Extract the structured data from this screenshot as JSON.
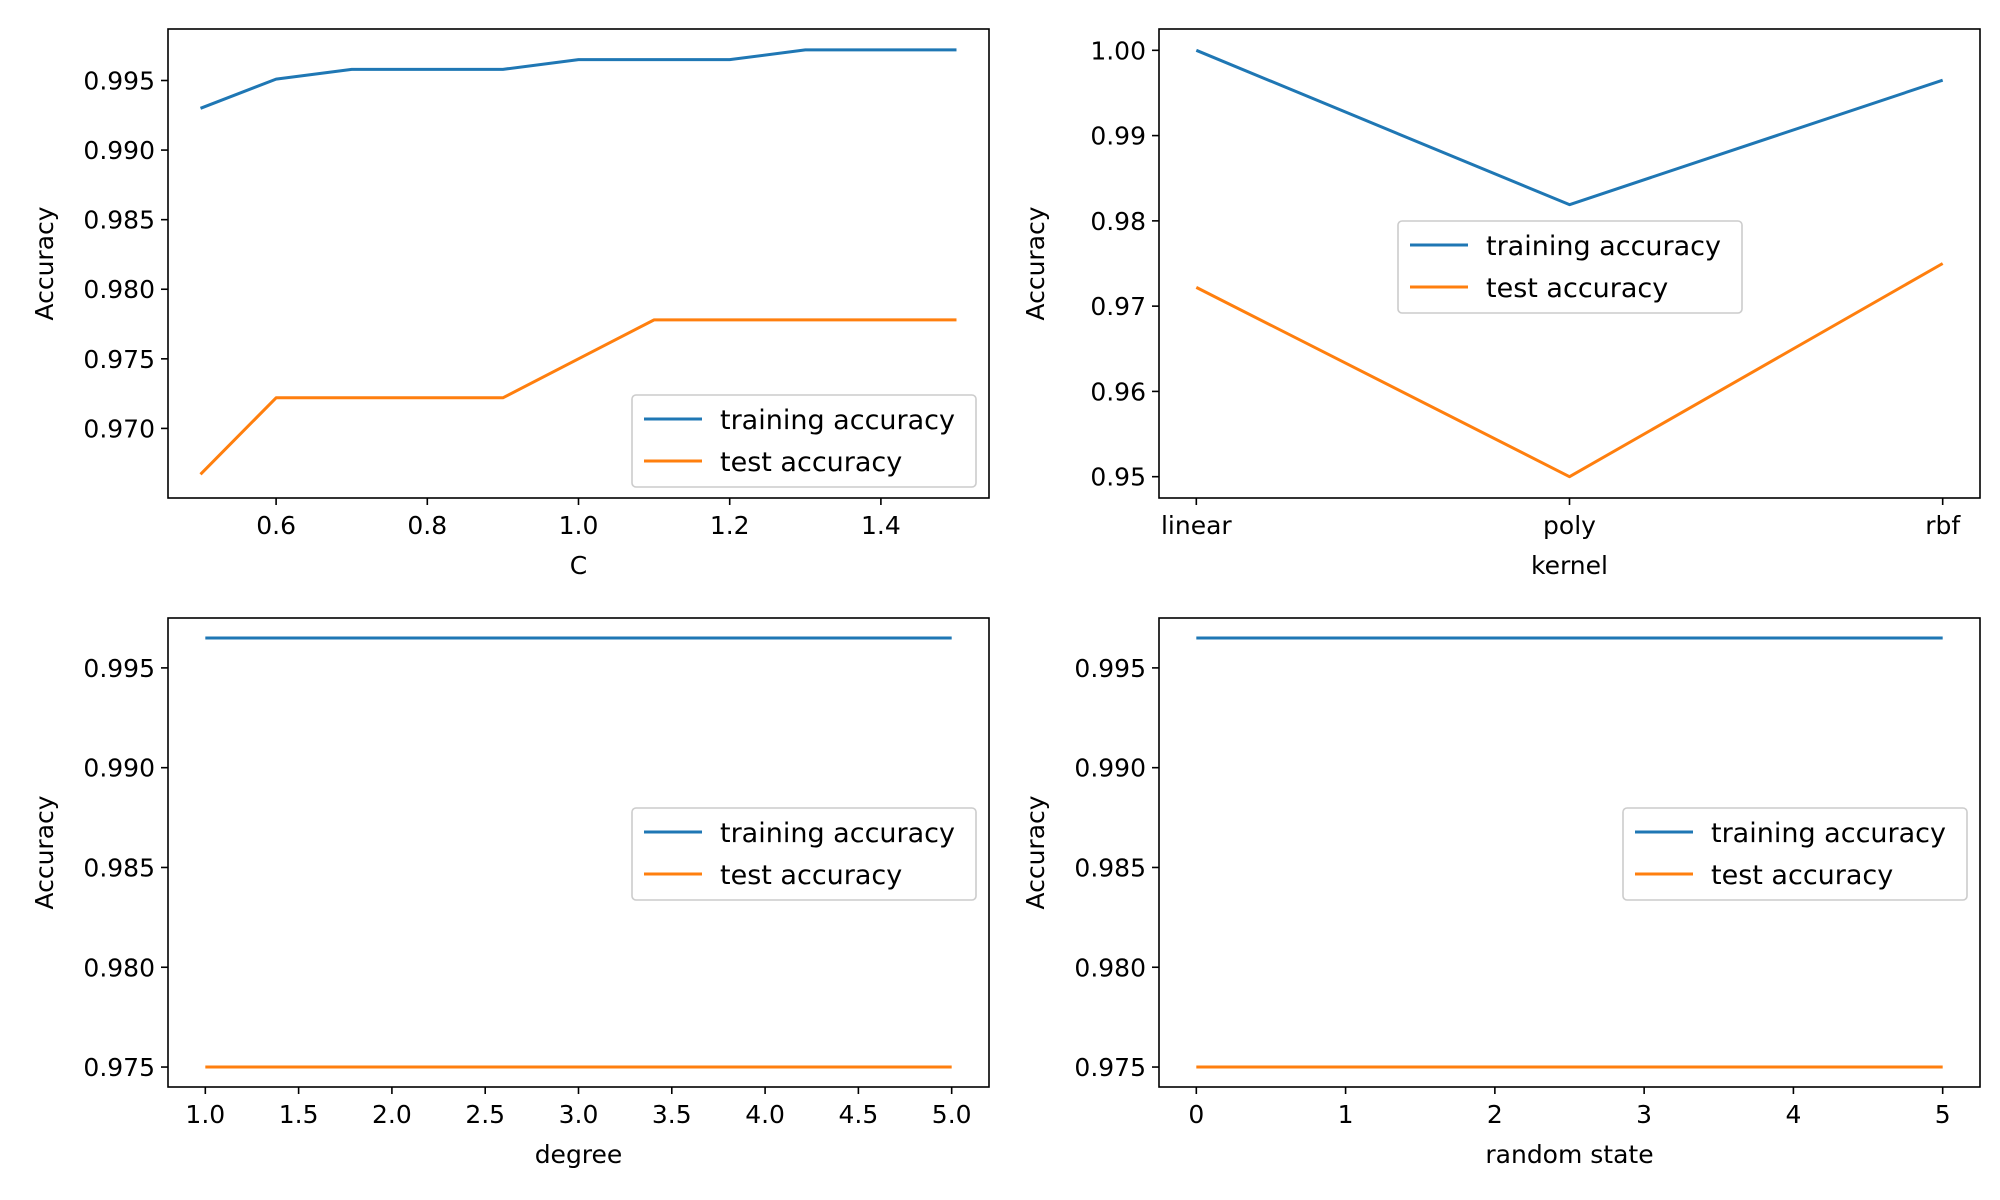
{
  "colors": {
    "training": "#1f77b4",
    "test": "#ff7f0e",
    "axes": "#000000",
    "legend_border": "#cccccc",
    "background": "#ffffff"
  },
  "chart_data": [
    {
      "type": "line",
      "xlabel": "C",
      "ylabel": "Accuracy",
      "x_scale": "numeric",
      "xlim": [
        0.457,
        1.543
      ],
      "ylim": [
        0.965,
        0.9987
      ],
      "xticks": [
        0.6,
        0.8,
        1.0,
        1.2,
        1.4
      ],
      "xtick_labels": [
        "0.6",
        "0.8",
        "1.0",
        "1.2",
        "1.4"
      ],
      "yticks": [
        0.97,
        0.975,
        0.98,
        0.985,
        0.99,
        0.995
      ],
      "ytick_labels": [
        "0.970",
        "0.975",
        "0.980",
        "0.985",
        "0.990",
        "0.995"
      ],
      "legend_loc": "lower right",
      "x": [
        0.5,
        0.6,
        0.7,
        0.8,
        0.9,
        1.0,
        1.1,
        1.2,
        1.3,
        1.4,
        1.5
      ],
      "series": [
        {
          "name": "training accuracy",
          "values": [
            0.993,
            0.9951,
            0.9958,
            0.9958,
            0.9958,
            0.9965,
            0.9965,
            0.9965,
            0.9972,
            0.9972,
            0.9972
          ]
        },
        {
          "name": "test accuracy",
          "values": [
            0.9667,
            0.9722,
            0.9722,
            0.9722,
            0.9722,
            0.975,
            0.9778,
            0.9778,
            0.9778,
            0.9778,
            0.9778
          ]
        }
      ]
    },
    {
      "type": "line",
      "xlabel": "kernel",
      "ylabel": "Accuracy",
      "x_scale": "categorical",
      "xlim": [
        -0.1,
        2.1
      ],
      "ylim": [
        0.9475,
        1.0025
      ],
      "xticks": [
        0,
        1,
        2
      ],
      "xtick_labels": [
        "linear",
        "poly",
        "rbf"
      ],
      "yticks": [
        0.95,
        0.96,
        0.97,
        0.98,
        0.99,
        1.0
      ],
      "ytick_labels": [
        "0.95",
        "0.96",
        "0.97",
        "0.98",
        "0.99",
        "1.00"
      ],
      "legend_loc": "center",
      "x": [
        0,
        1,
        2
      ],
      "series": [
        {
          "name": "training accuracy",
          "values": [
            1.0,
            0.9819,
            0.9965
          ]
        },
        {
          "name": "test accuracy",
          "values": [
            0.9722,
            0.95,
            0.975
          ]
        }
      ]
    },
    {
      "type": "line",
      "xlabel": "degree",
      "ylabel": "Accuracy",
      "x_scale": "numeric",
      "xlim": [
        0.8,
        5.2
      ],
      "ylim": [
        0.974,
        0.9975
      ],
      "xticks": [
        1.0,
        1.5,
        2.0,
        2.5,
        3.0,
        3.5,
        4.0,
        4.5,
        5.0
      ],
      "xtick_labels": [
        "1.0",
        "1.5",
        "2.0",
        "2.5",
        "3.0",
        "3.5",
        "4.0",
        "4.5",
        "5.0"
      ],
      "yticks": [
        0.975,
        0.98,
        0.985,
        0.99,
        0.995
      ],
      "ytick_labels": [
        "0.975",
        "0.980",
        "0.985",
        "0.990",
        "0.995"
      ],
      "legend_loc": "center right",
      "x": [
        1,
        2,
        3,
        4,
        5
      ],
      "series": [
        {
          "name": "training accuracy",
          "values": [
            0.9965,
            0.9965,
            0.9965,
            0.9965,
            0.9965
          ]
        },
        {
          "name": "test accuracy",
          "values": [
            0.975,
            0.975,
            0.975,
            0.975,
            0.975
          ]
        }
      ]
    },
    {
      "type": "line",
      "xlabel": "random state",
      "ylabel": "Accuracy",
      "x_scale": "numeric",
      "xlim": [
        -0.25,
        5.25
      ],
      "ylim": [
        0.974,
        0.9975
      ],
      "xticks": [
        0,
        1,
        2,
        3,
        4,
        5
      ],
      "xtick_labels": [
        "0",
        "1",
        "2",
        "3",
        "4",
        "5"
      ],
      "yticks": [
        0.975,
        0.98,
        0.985,
        0.99,
        0.995
      ],
      "ytick_labels": [
        "0.975",
        "0.980",
        "0.985",
        "0.990",
        "0.995"
      ],
      "legend_loc": "center right",
      "x": [
        0,
        1,
        2,
        3,
        4,
        5
      ],
      "series": [
        {
          "name": "training accuracy",
          "values": [
            0.9965,
            0.9965,
            0.9965,
            0.9965,
            0.9965,
            0.9965
          ]
        },
        {
          "name": "test accuracy",
          "values": [
            0.975,
            0.975,
            0.975,
            0.975,
            0.975,
            0.975
          ]
        }
      ]
    }
  ]
}
